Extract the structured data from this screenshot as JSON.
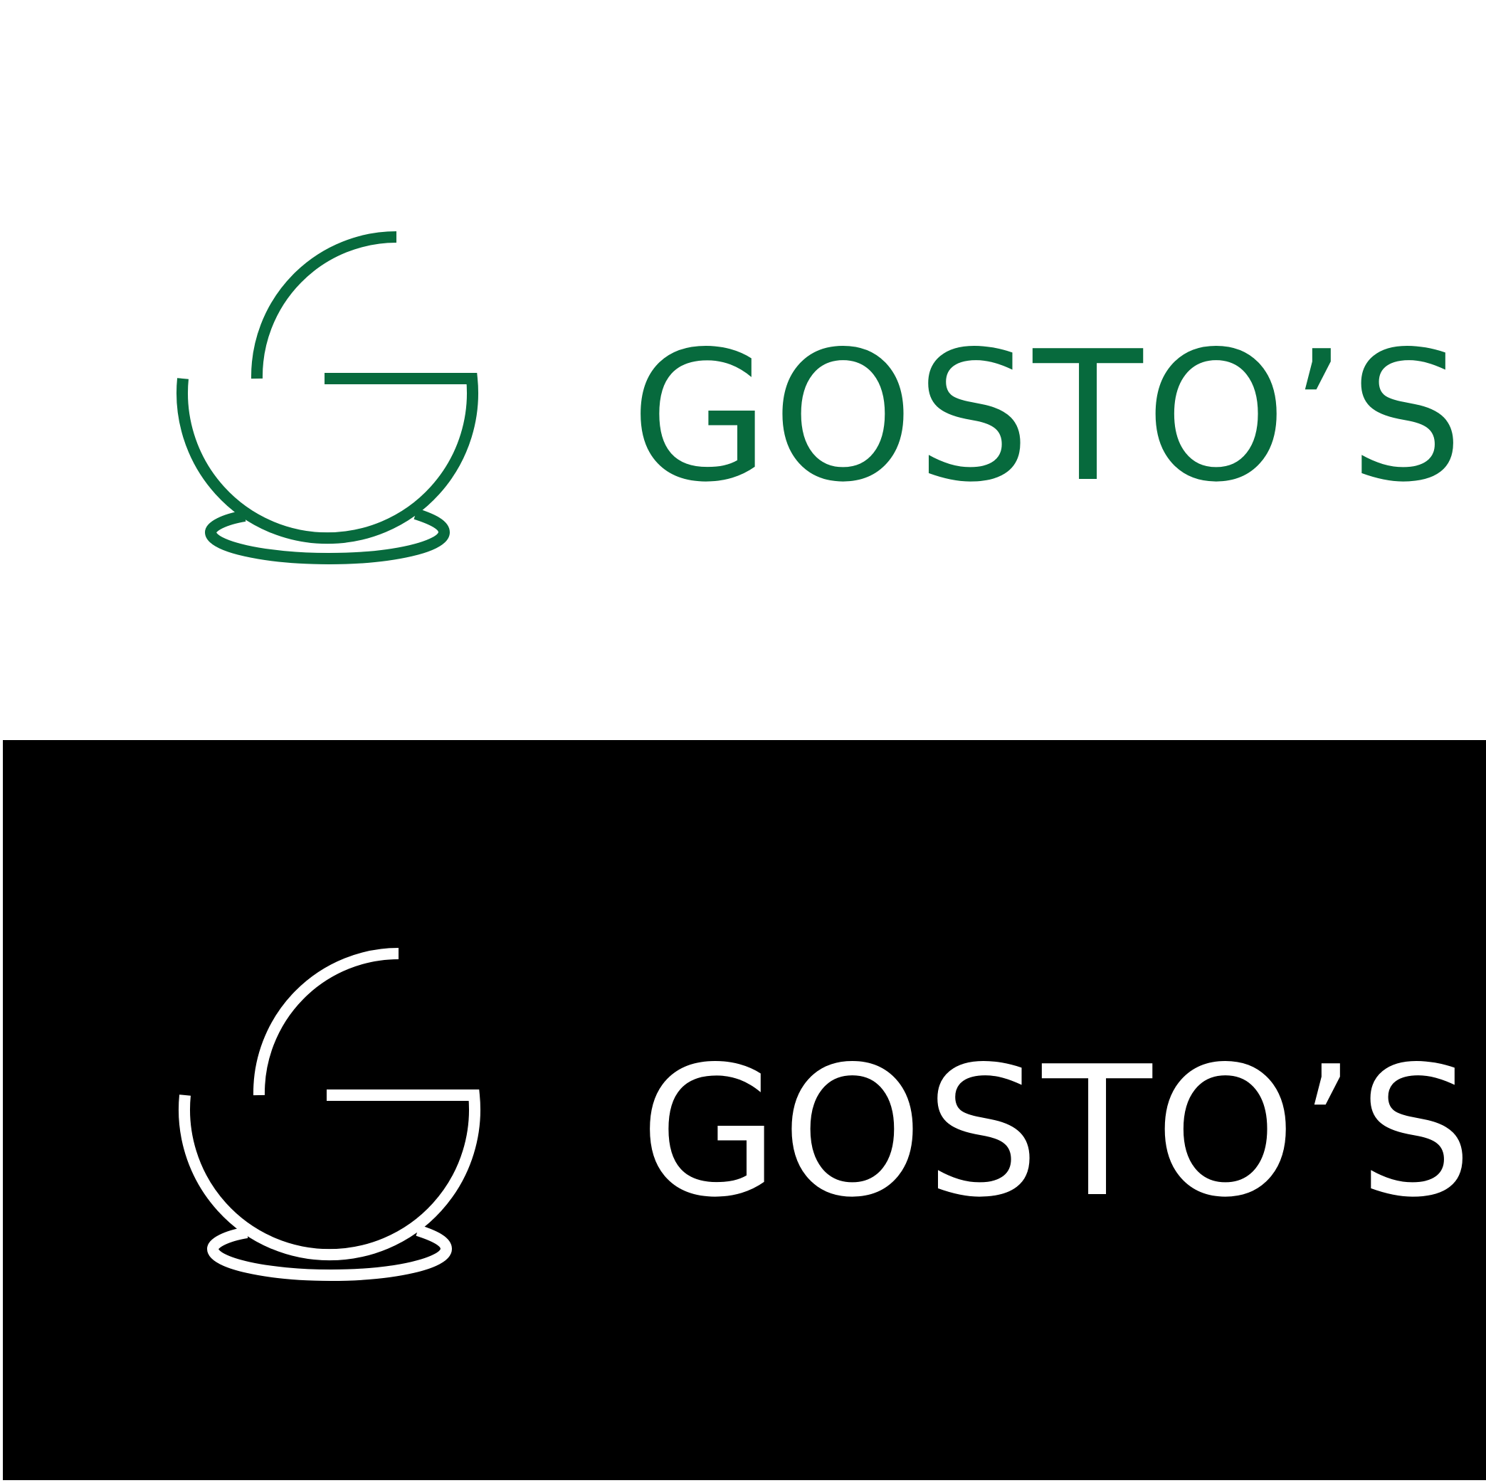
{
  "brand": {
    "name": "GOSTO’S"
  },
  "variants": [
    {
      "id": "light",
      "background_color": "#ffffff",
      "mark_color": "#076a3d",
      "icon": "bowl-g-monogram-icon"
    },
    {
      "id": "dark",
      "background_color": "#000000",
      "mark_color": "#ffffff",
      "icon": "bowl-g-monogram-icon"
    }
  ]
}
